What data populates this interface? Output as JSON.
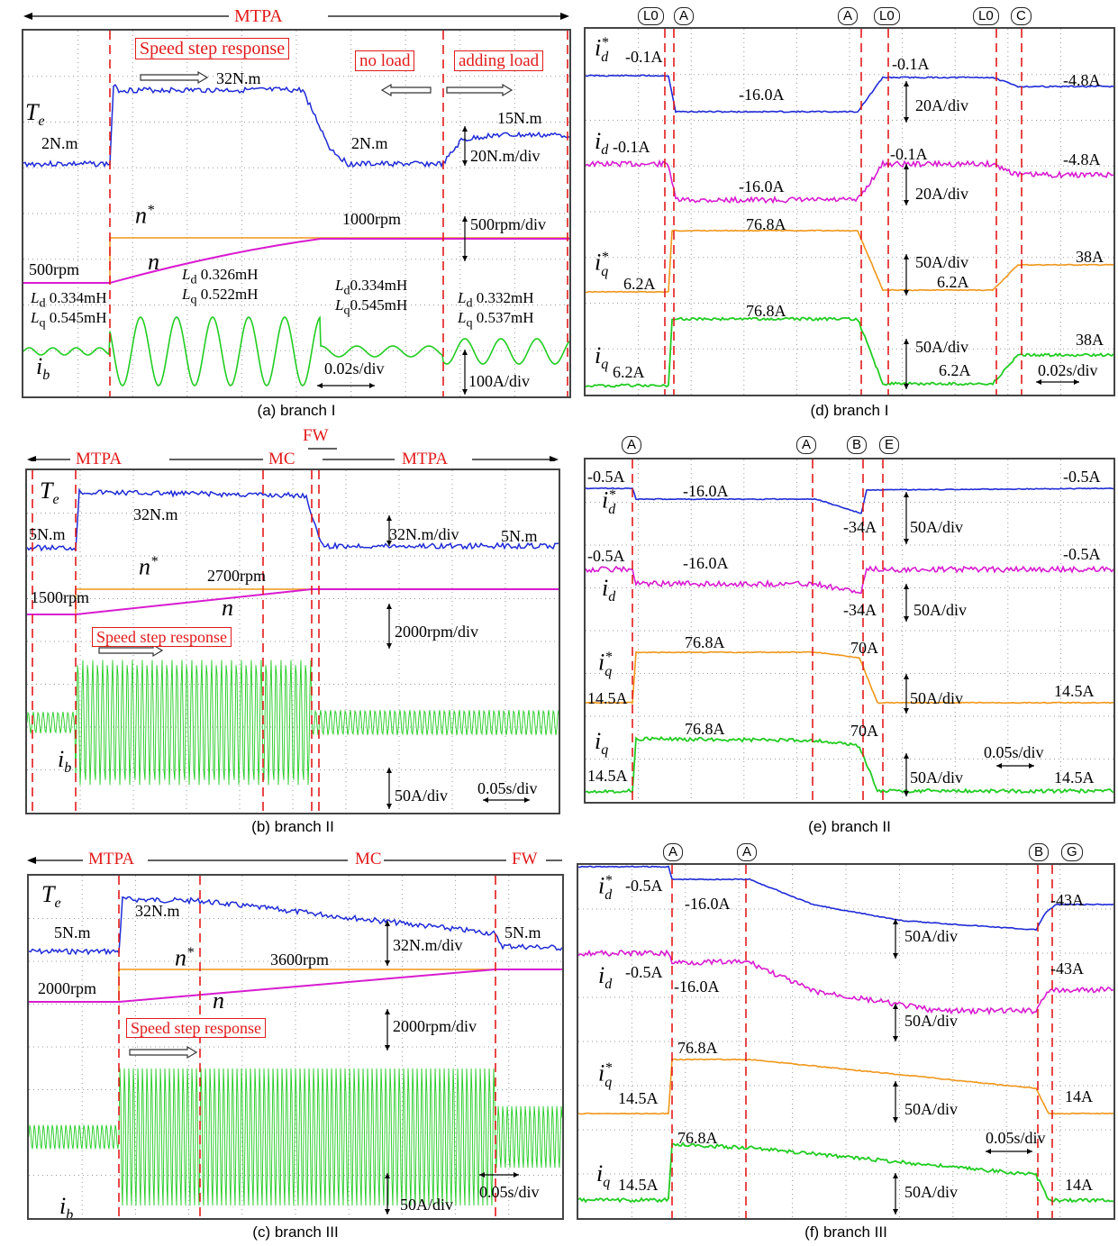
{
  "captions": {
    "a": "(a) branch I",
    "b": "(b) branch II",
    "c": "(c) branch III",
    "d": "(d) branch I",
    "e": "(e) branch II",
    "f": "(f) branch III"
  },
  "colors": {
    "Te": "#1f2bd6",
    "n": "#d81bd0",
    "n_ref": "#f0961a",
    "ib": "#22cc22",
    "id_ref": "#1f2bd6",
    "id": "#d81bd0",
    "iq_ref": "#f0961a",
    "iq": "#22cc22",
    "marker": "#e21a1a"
  },
  "panel_a": {
    "mode": "MTPA",
    "box_speed": "Speed step response",
    "box_noload": "no load",
    "box_addload": "adding load",
    "te": "T",
    "te_sub": "e",
    "n_ref": "n",
    "n_ref_sup": "*",
    "n": "n",
    "ib": "i",
    "ib_sub": "b",
    "v_2nm": "2N.m",
    "v_32nm": "32N.m",
    "v_2nm_b": "2N.m",
    "v_15nm": "15N.m",
    "div_te": "20N.m/div",
    "v_1000": "1000rpm",
    "div_n": "500rpm/div",
    "v_500": "500rpm",
    "ld1": "0.334mH",
    "lq1": "0.545mH",
    "ld2": "0.326mH",
    "lq2": "0.522mH",
    "ld3": "0.334mH",
    "lq3": "0.545mH",
    "ld4": "0.332mH",
    "lq4": "0.537mH",
    "ld_sym": "L",
    "ld_sub": "d",
    "lq_sym": "L",
    "lq_sub": "q",
    "tdiv": "0.02s/div",
    "div_ib": "100A/div"
  },
  "panel_b": {
    "mode1": "MTPA",
    "mode2": "MC",
    "mode3": "FW",
    "mode4": "MTPA",
    "box_speed": "Speed step response",
    "v_5nm": "5N.m",
    "v_32nm": "32N.m",
    "div_te": "32N.m/div",
    "v_5nm_b": "5N.m",
    "v_2700": "2700rpm",
    "v_1500": "1500rpm",
    "div_n": "2000rpm/div",
    "div_ib": "50A/div",
    "tdiv": "0.05s/div"
  },
  "panel_c": {
    "mode1": "MTPA",
    "mode2": "MC",
    "mode3": "FW",
    "box_speed": "Speed step response",
    "v_5nm": "5N.m",
    "v_32nm": "32N.m",
    "div_te": "32N.m/div",
    "v_5nm_b": "5N.m",
    "v_3600": "3600rpm",
    "v_2000": "2000rpm",
    "div_n": "2000rpm/div",
    "div_ib": "50A/div",
    "tdiv": "0.05s/div"
  },
  "panel_d": {
    "m1": "L0",
    "m2": "A",
    "m3": "A",
    "m4": "L0",
    "m5": "L0",
    "m6": "C",
    "idr_a": "-0.1A",
    "idr_b": "-16.0A",
    "idr_c": "-0.1A",
    "idr_d": "-4.8A",
    "id_a": "-0.1A",
    "id_b": "-16.0A",
    "id_c": "-0.1A",
    "id_d": "-4.8A",
    "iqr_a": "6.2A",
    "iqr_b": "76.8A",
    "iqr_c": "6.2A",
    "iqr_d": "38A",
    "iq_a": "6.2A",
    "iq_b": "76.8A",
    "iq_c": "6.2A",
    "iq_d": "38A",
    "div1": "20A/div",
    "div2": "20A/div",
    "div3": "50A/div",
    "div4": "50A/div",
    "tdiv": "0.02s/div"
  },
  "panel_e": {
    "m1": "A",
    "m2": "A",
    "m3": "B",
    "m4": "E",
    "idr_a": "-0.5A",
    "idr_b": "-16.0A",
    "idr_c": "-34A",
    "idr_d": "-0.5A",
    "id_a": "-0.5A",
    "id_b": "-16.0A",
    "id_c": "-34A",
    "id_d": "-0.5A",
    "iqr_a": "14.5A",
    "iqr_b": "76.8A",
    "iqr_c": "70A",
    "iqr_d": "14.5A",
    "iq_a": "14.5A",
    "iq_b": "76.8A",
    "iq_c": "70A",
    "iq_d": "14.5A",
    "div1": "50A/div",
    "div2": "50A/div",
    "div3": "50A/div",
    "div4": "50A/div",
    "tdiv": "0.05s/div"
  },
  "panel_f": {
    "m1": "A",
    "m2": "A",
    "m3": "B",
    "m4": "G",
    "idr_a": "-0.5A",
    "idr_b": "-16.0A",
    "idr_d": "-43A",
    "id_a": "-0.5A",
    "id_b": "-16.0A",
    "id_d": "-43A",
    "iqr_a": "14.5A",
    "iqr_b": "76.8A",
    "iqr_d": "14A",
    "iq_a": "14.5A",
    "iq_b": "76.8A",
    "iq_d": "14A",
    "div1": "50A/div",
    "div2": "50A/div",
    "div3": "50A/div",
    "div4": "50A/div",
    "tdiv": "0.05s/div"
  },
  "sym": {
    "i": "i",
    "d": "d",
    "q": "q",
    "star": "*"
  },
  "chart_data": [
    {
      "type": "line",
      "title": "(a) branch I",
      "series": [
        {
          "name": "Te",
          "points": [
            [
              0,
              2
            ],
            [
              0.2,
              2
            ],
            [
              0.21,
              32
            ],
            [
              0.65,
              32
            ],
            [
              0.75,
              2
            ],
            [
              1.0,
              2
            ],
            [
              1.05,
              15
            ],
            [
              1.3,
              15
            ]
          ]
        },
        {
          "name": "n*",
          "points": [
            [
              0,
              500
            ],
            [
              0.2,
              500
            ],
            [
              0.2,
              1000
            ],
            [
              1.3,
              1000
            ]
          ]
        },
        {
          "name": "n",
          "points": [
            [
              0,
              500
            ],
            [
              0.2,
              500
            ],
            [
              0.7,
              1000
            ],
            [
              1.3,
              1000
            ]
          ]
        }
      ]
    },
    {
      "type": "line",
      "title": "(b) branch II",
      "series": [
        {
          "name": "Te",
          "points": [
            [
              0,
              5
            ],
            [
              0.13,
              5
            ],
            [
              0.14,
              32
            ],
            [
              0.8,
              32
            ],
            [
              0.85,
              5
            ],
            [
              1.5,
              5
            ]
          ]
        },
        {
          "name": "n*",
          "points": [
            [
              0,
              1500
            ],
            [
              0.13,
              1500
            ],
            [
              0.13,
              2700
            ],
            [
              1.5,
              2700
            ]
          ]
        },
        {
          "name": "n",
          "points": [
            [
              0,
              1500
            ],
            [
              0.13,
              1500
            ],
            [
              0.82,
              2700
            ],
            [
              1.5,
              2700
            ]
          ]
        }
      ]
    },
    {
      "type": "line",
      "title": "(c) branch III",
      "series": [
        {
          "name": "Te",
          "points": [
            [
              0,
              5
            ],
            [
              0.25,
              5
            ],
            [
              0.26,
              32
            ],
            [
              0.48,
              32
            ],
            [
              1.3,
              16
            ],
            [
              1.33,
              5
            ],
            [
              1.5,
              5
            ]
          ]
        },
        {
          "name": "n*",
          "points": [
            [
              0,
              2000
            ],
            [
              0.25,
              2000
            ],
            [
              0.25,
              3600
            ],
            [
              1.5,
              3600
            ]
          ]
        },
        {
          "name": "n",
          "points": [
            [
              0,
              2000
            ],
            [
              0.25,
              2000
            ],
            [
              1.3,
              3600
            ],
            [
              1.5,
              3600
            ]
          ]
        }
      ]
    },
    {
      "type": "line",
      "title": "(d) branch I",
      "series": [
        {
          "name": "id*",
          "points": [
            [
              0,
              -0.1
            ],
            [
              0.08,
              -0.1
            ],
            [
              0.09,
              -16
            ],
            [
              0.26,
              -16
            ],
            [
              0.29,
              -0.1
            ],
            [
              0.39,
              -0.1
            ],
            [
              0.42,
              -4.8
            ],
            [
              0.52,
              -4.8
            ]
          ]
        },
        {
          "name": "id",
          "points": [
            [
              0,
              -0.1
            ],
            [
              0.08,
              -0.1
            ],
            [
              0.09,
              -16
            ],
            [
              0.26,
              -16
            ],
            [
              0.29,
              -0.1
            ],
            [
              0.39,
              -0.1
            ],
            [
              0.42,
              -4.8
            ],
            [
              0.52,
              -4.8
            ]
          ]
        },
        {
          "name": "iq*",
          "points": [
            [
              0,
              6.2
            ],
            [
              0.08,
              6.2
            ],
            [
              0.09,
              76.8
            ],
            [
              0.26,
              76.8
            ],
            [
              0.29,
              6.2
            ],
            [
              0.39,
              6.2
            ],
            [
              0.42,
              38
            ],
            [
              0.52,
              38
            ]
          ]
        },
        {
          "name": "iq",
          "points": [
            [
              0,
              6.2
            ],
            [
              0.08,
              6.2
            ],
            [
              0.09,
              76.8
            ],
            [
              0.26,
              76.8
            ],
            [
              0.29,
              6.2
            ],
            [
              0.39,
              6.2
            ],
            [
              0.42,
              38
            ],
            [
              0.52,
              38
            ]
          ]
        }
      ]
    },
    {
      "type": "line",
      "title": "(e) branch II",
      "series": [
        {
          "name": "id*",
          "points": [
            [
              0,
              -0.5
            ],
            [
              0.2,
              -0.5
            ],
            [
              0.21,
              -16
            ],
            [
              1.0,
              -16
            ],
            [
              1.2,
              -34
            ],
            [
              1.22,
              -0.5
            ],
            [
              2.0,
              -0.5
            ]
          ]
        },
        {
          "name": "id",
          "points": [
            [
              0,
              -0.5
            ],
            [
              0.2,
              -0.5
            ],
            [
              0.21,
              -16
            ],
            [
              1.0,
              -16
            ],
            [
              1.2,
              -34
            ],
            [
              1.22,
              -0.5
            ],
            [
              2.0,
              -0.5
            ]
          ]
        },
        {
          "name": "iq*",
          "points": [
            [
              0,
              14.5
            ],
            [
              0.2,
              14.5
            ],
            [
              0.21,
              76.8
            ],
            [
              1.0,
              76.8
            ],
            [
              1.2,
              70
            ],
            [
              1.3,
              14.5
            ],
            [
              2.0,
              14.5
            ]
          ]
        },
        {
          "name": "iq",
          "points": [
            [
              0,
              14.5
            ],
            [
              0.2,
              14.5
            ],
            [
              0.21,
              76.8
            ],
            [
              1.0,
              76.8
            ],
            [
              1.2,
              70
            ],
            [
              1.3,
              14.5
            ],
            [
              2.0,
              14.5
            ]
          ]
        }
      ]
    },
    {
      "type": "line",
      "title": "(f) branch III",
      "series": [
        {
          "name": "id*",
          "points": [
            [
              0,
              -0.5
            ],
            [
              0.4,
              -0.5
            ],
            [
              0.41,
              -16
            ],
            [
              0.75,
              -16
            ],
            [
              1.6,
              -40
            ],
            [
              1.72,
              -43
            ],
            [
              2.0,
              -43
            ]
          ]
        },
        {
          "name": "id",
          "points": [
            [
              0,
              -0.5
            ],
            [
              0.4,
              -0.5
            ],
            [
              0.41,
              -16
            ],
            [
              0.75,
              -16
            ],
            [
              1.6,
              -40
            ],
            [
              1.72,
              -43
            ],
            [
              2.0,
              -43
            ]
          ]
        },
        {
          "name": "iq*",
          "points": [
            [
              0,
              14.5
            ],
            [
              0.4,
              14.5
            ],
            [
              0.41,
              76.8
            ],
            [
              0.75,
              76.8
            ],
            [
              1.6,
              55
            ],
            [
              1.72,
              14
            ],
            [
              2.0,
              14
            ]
          ]
        },
        {
          "name": "iq",
          "points": [
            [
              0,
              14.5
            ],
            [
              0.4,
              14.5
            ],
            [
              0.41,
              76.8
            ],
            [
              0.75,
              76.8
            ],
            [
              1.6,
              55
            ],
            [
              1.72,
              14
            ],
            [
              2.0,
              14
            ]
          ]
        }
      ]
    }
  ]
}
